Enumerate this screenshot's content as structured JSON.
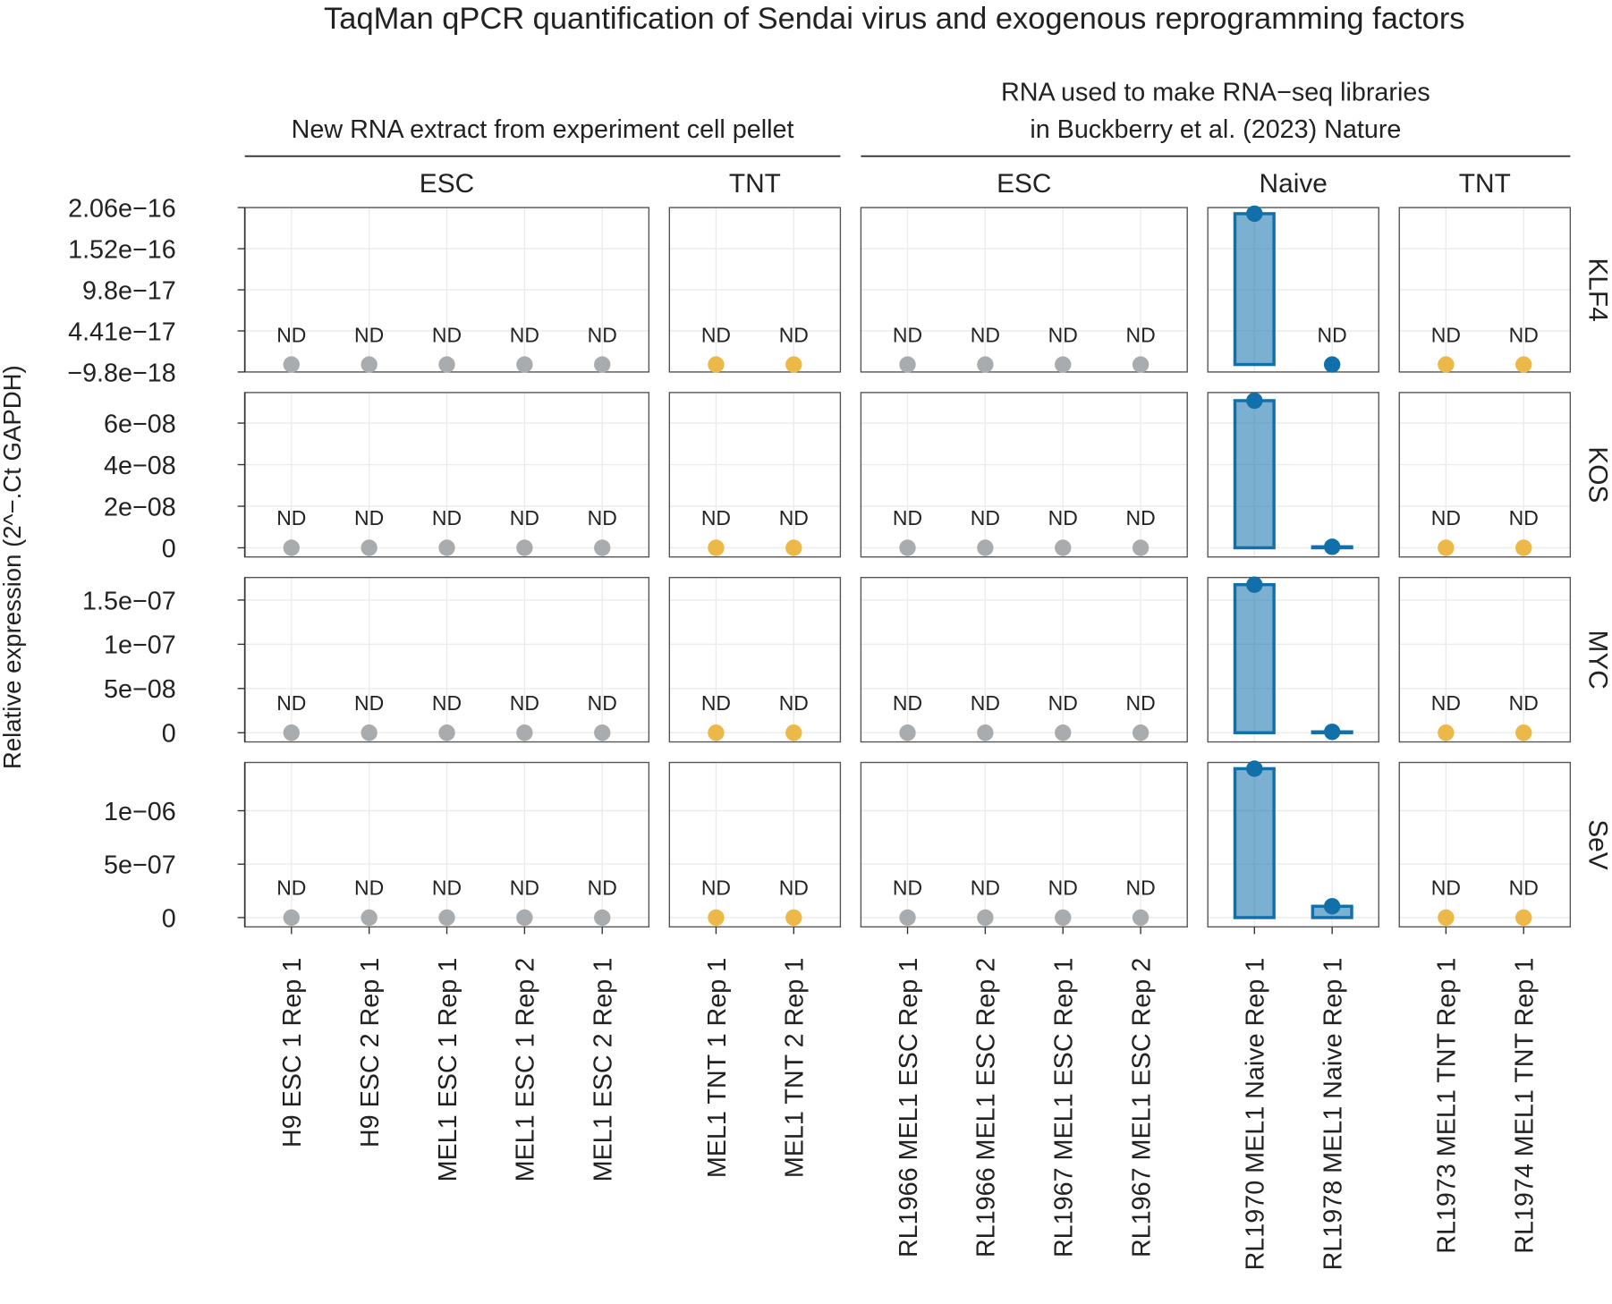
{
  "chart_data": {
    "type": "bar",
    "title": "TaqMan qPCR quantification of Sendai virus and exogenous reprogramming factors",
    "y_label": "Relative expression (2^−.Ct GAPDH)",
    "groups": [
      {
        "label": [
          "New RNA extract from experiment cell pellet"
        ],
        "panels": [
          {
            "label": "ESC",
            "color": "#a9acae",
            "samples": [
              "H9 ESC 1 Rep 1",
              "H9 ESC 2 Rep 1",
              "MEL1 ESC 1 Rep 1",
              "MEL1 ESC 1 Rep 2",
              "MEL1 ESC 2 Rep 1"
            ]
          },
          {
            "label": "TNT",
            "color": "#ecb848",
            "samples": [
              "MEL1 TNT 1 Rep 1",
              "MEL1 TNT 2 Rep 1"
            ]
          }
        ]
      },
      {
        "label": [
          "RNA used to make RNA−seq libraries",
          "in Buckberry et al. (2023) Nature"
        ],
        "panels": [
          {
            "label": "ESC",
            "color": "#a9acae",
            "samples": [
              "RL1966 MEL1 ESC Rep 1",
              "RL1966 MEL1 ESC Rep 2",
              "RL1967 MEL1 ESC Rep 1",
              "RL1967 MEL1 ESC Rep 2"
            ]
          },
          {
            "label": "Naive",
            "color": "#1170aa",
            "samples": [
              "RL1970 MEL1 Naive Rep 1",
              "RL1978 MEL1 Naive Rep 1"
            ]
          },
          {
            "label": "TNT",
            "color": "#ecb848",
            "samples": [
              "RL1973 MEL1 TNT Rep 1",
              "RL1974 MEL1 TNT Rep 1"
            ]
          }
        ]
      }
    ],
    "rows": [
      {
        "label": "KLF4",
        "ylim": [
          -9.8e-18,
          2.06e-16
        ],
        "yticks": [
          {
            "value": -9.8e-18,
            "label": "−9.8e−18"
          },
          {
            "value": 4.41e-17,
            "label": "4.41e−17"
          },
          {
            "value": 9.8e-17,
            "label": "9.8e−17"
          },
          {
            "value": 1.52e-16,
            "label": "1.52e−16"
          },
          {
            "value": 2.06e-16,
            "label": "2.06e−16"
          }
        ],
        "values": [
          0,
          0,
          0,
          0,
          0,
          0,
          0,
          0,
          0,
          0,
          0,
          1.98e-16,
          0,
          0,
          0
        ],
        "value_labels": [
          "ND",
          "ND",
          "ND",
          "ND",
          "ND",
          "ND",
          "ND",
          "ND",
          "ND",
          "ND",
          "ND",
          null,
          "ND",
          "ND",
          "ND"
        ]
      },
      {
        "label": "KOS",
        "ylim": [
          -4.4e-09,
          7.47e-08
        ],
        "yticks": [
          0,
          {
            "value": 2e-08,
            "label": "2e−08"
          },
          {
            "value": 4e-08,
            "label": "4e−08"
          },
          {
            "value": 6e-08,
            "label": "6e−08"
          }
        ],
        "values": [
          0,
          0,
          0,
          0,
          0,
          0,
          0,
          0,
          0,
          0,
          0,
          7.08e-08,
          5e-10,
          0,
          0
        ],
        "value_labels": [
          "ND",
          "ND",
          "ND",
          "ND",
          "ND",
          "ND",
          "ND",
          "ND",
          "ND",
          "ND",
          "ND",
          null,
          null,
          "ND",
          "ND"
        ]
      },
      {
        "label": "MYC",
        "ylim": [
          -1.04e-08,
          1.755e-07
        ],
        "yticks": [
          0,
          {
            "value": 5e-08,
            "label": "5e−08"
          },
          {
            "value": 1e-07,
            "label": "1e−07"
          },
          {
            "value": 1.5e-07,
            "label": "1.5e−07"
          }
        ],
        "values": [
          0,
          0,
          0,
          0,
          0,
          0,
          0,
          0,
          0,
          0,
          0,
          1.674e-07,
          1e-09,
          0,
          0
        ],
        "value_labels": [
          "ND",
          "ND",
          "ND",
          "ND",
          "ND",
          "ND",
          "ND",
          "ND",
          "ND",
          "ND",
          "ND",
          null,
          null,
          "ND",
          "ND"
        ]
      },
      {
        "label": "SeV",
        "ylim": [
          -8.7e-08,
          1.452e-06
        ],
        "yticks": [
          0,
          {
            "value": 5e-07,
            "label": "5e−07"
          },
          {
            "value": 1e-06,
            "label": "1e−06"
          }
        ],
        "values": [
          0,
          0,
          0,
          0,
          0,
          0,
          0,
          0,
          0,
          0,
          0,
          1.394e-06,
          1.06e-07,
          0,
          0
        ],
        "value_labels": [
          "ND",
          "ND",
          "ND",
          "ND",
          "ND",
          "ND",
          "ND",
          "ND",
          "ND",
          "ND",
          "ND",
          null,
          null,
          "ND",
          "ND"
        ]
      }
    ]
  }
}
